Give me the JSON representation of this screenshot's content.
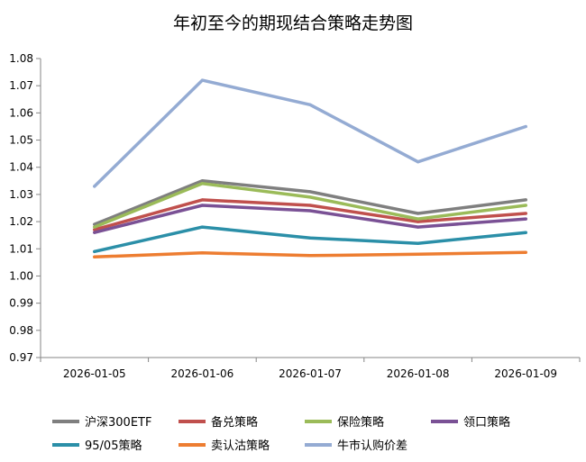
{
  "chart_data": {
    "type": "line",
    "title": "年初至今的期现结合策略走势图",
    "xlabel": "",
    "ylabel": "",
    "categories": [
      "2026-01-05",
      "2026-01-06",
      "2026-01-07",
      "2026-01-08",
      "2026-01-09"
    ],
    "ylim": [
      0.97,
      1.08
    ],
    "yticks": [
      "0.97",
      "0.98",
      "0.99",
      "1.00",
      "1.01",
      "1.02",
      "1.03",
      "1.04",
      "1.05",
      "1.06",
      "1.07",
      "1.08"
    ],
    "legend_position": "bottom",
    "series": [
      {
        "name": "沪深300ETF",
        "color": "#7f7f7f",
        "values": [
          1.019,
          1.035,
          1.031,
          1.023,
          1.028
        ]
      },
      {
        "name": "备兑策略",
        "color": "#c0504d",
        "values": [
          1.017,
          1.028,
          1.026,
          1.02,
          1.023
        ]
      },
      {
        "name": "保险策略",
        "color": "#9bbb59",
        "values": [
          1.018,
          1.034,
          1.029,
          1.021,
          1.026
        ]
      },
      {
        "name": "领口策略",
        "color": "#7a5195",
        "values": [
          1.016,
          1.026,
          1.024,
          1.018,
          1.021
        ]
      },
      {
        "name": "95/05策略",
        "color": "#2b8fa8",
        "values": [
          1.009,
          1.018,
          1.014,
          1.012,
          1.016
        ]
      },
      {
        "name": "卖认沽策略",
        "color": "#ed7d31",
        "values": [
          1.007,
          1.0085,
          1.0075,
          1.008,
          1.0087
        ]
      },
      {
        "name": "牛市认购价差",
        "color": "#94abd3",
        "values": [
          1.033,
          1.072,
          1.063,
          1.042,
          1.055
        ]
      }
    ]
  }
}
